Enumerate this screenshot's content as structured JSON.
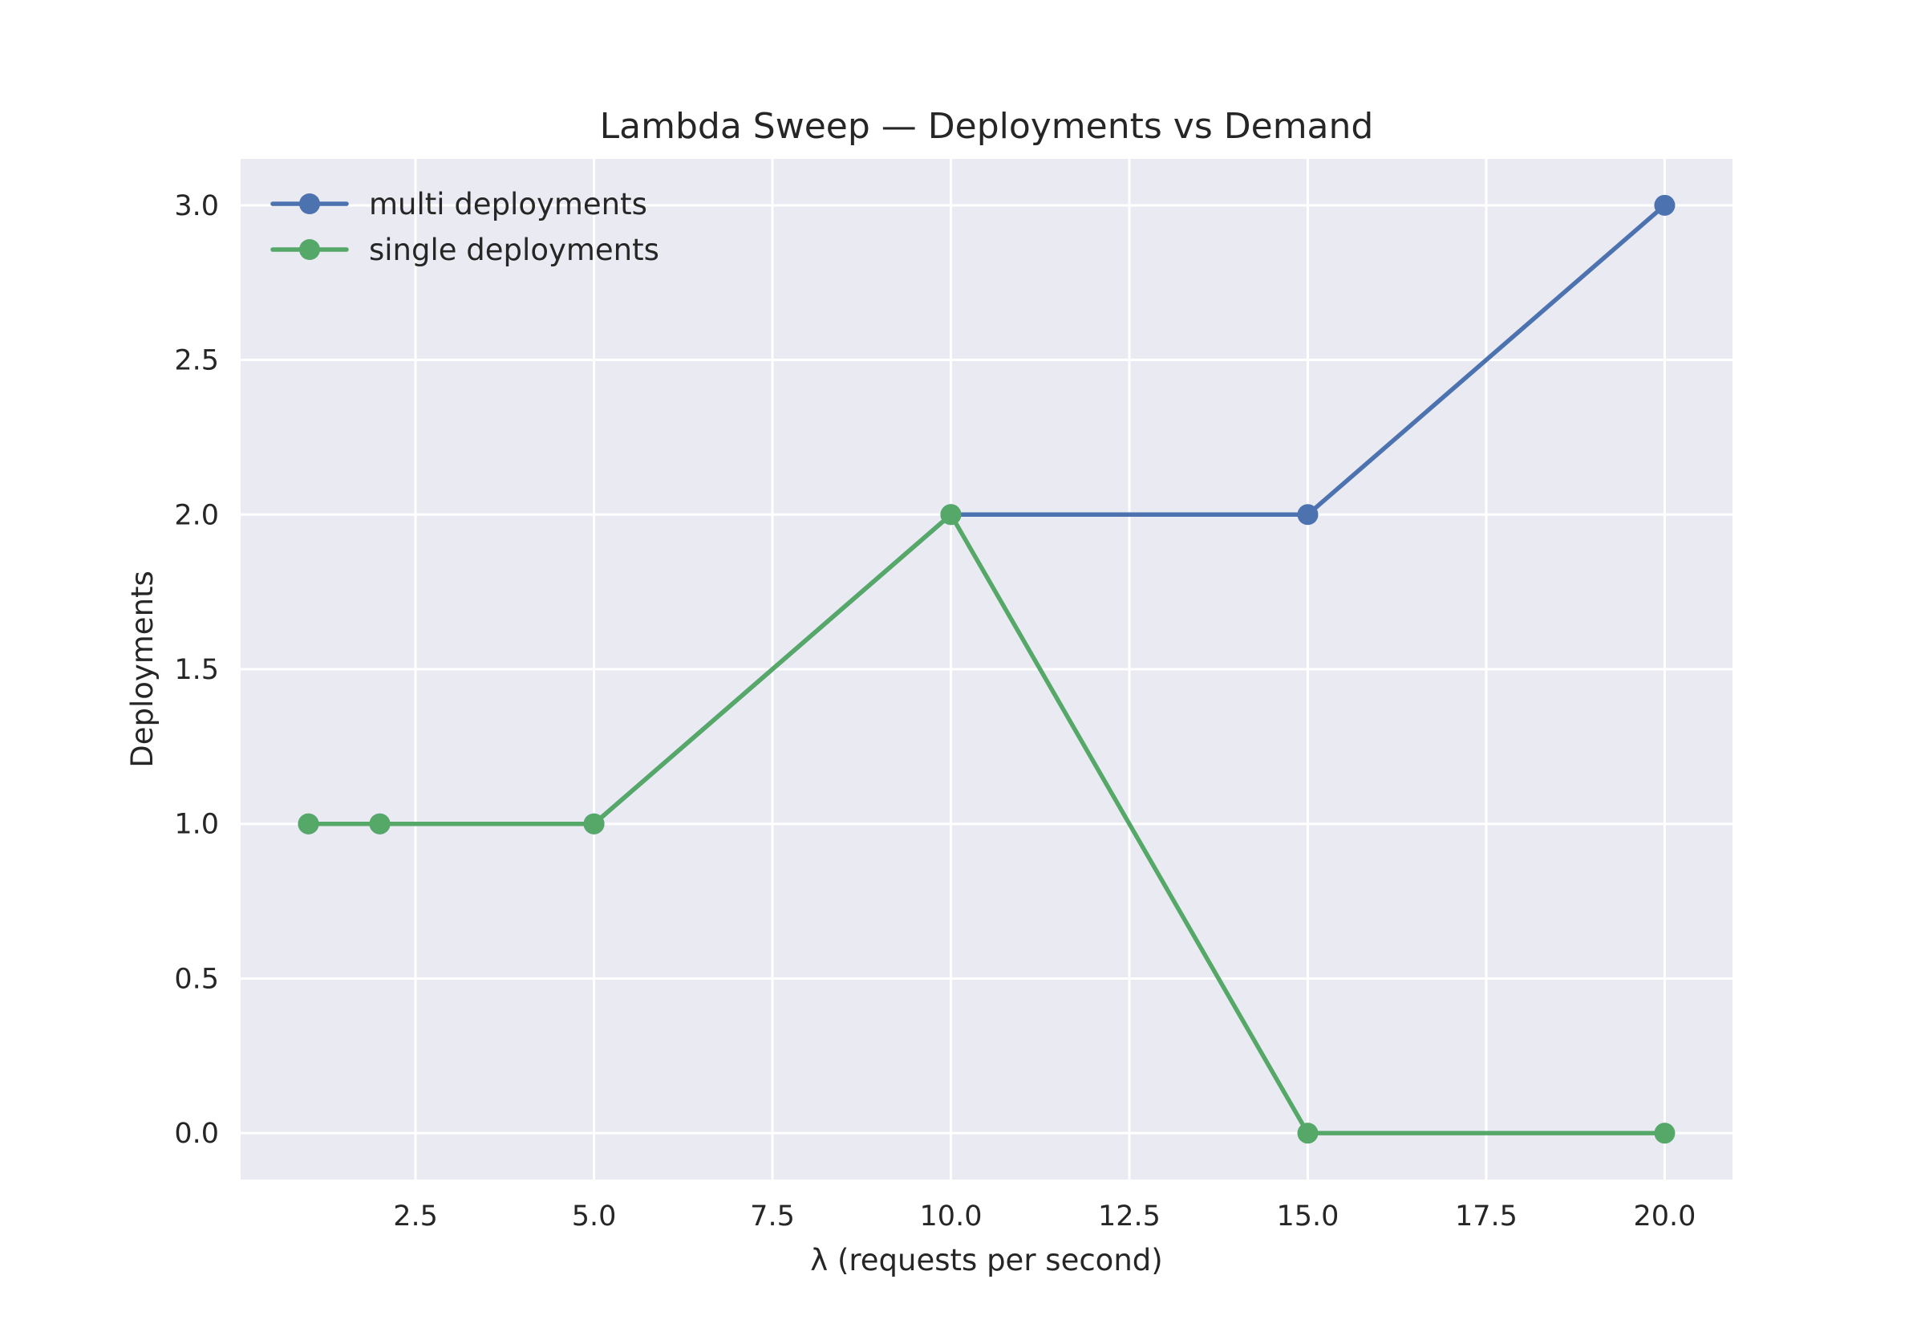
{
  "chart_data": {
    "type": "line",
    "title": "Lambda Sweep — Deployments vs Demand",
    "xlabel": "λ (requests per second)",
    "ylabel": "Deployments",
    "xlim": [
      0.05,
      20.95
    ],
    "ylim": [
      -0.15,
      3.15
    ],
    "xticks": [
      2.5,
      5.0,
      7.5,
      10.0,
      12.5,
      15.0,
      17.5,
      20.0
    ],
    "xtick_labels": [
      "2.5",
      "5.0",
      "7.5",
      "10.0",
      "12.5",
      "15.0",
      "17.5",
      "20.0"
    ],
    "yticks": [
      0.0,
      0.5,
      1.0,
      1.5,
      2.0,
      2.5,
      3.0
    ],
    "ytick_labels": [
      "0.0",
      "0.5",
      "1.0",
      "1.5",
      "2.0",
      "2.5",
      "3.0"
    ],
    "grid": true,
    "legend_position": "top-left",
    "background": "#EAEAF2",
    "series": [
      {
        "name": "multi deployments",
        "color": "#4C72B0",
        "x": [
          1,
          2,
          5,
          10,
          15,
          20
        ],
        "y": [
          1,
          1,
          1,
          2,
          2,
          3
        ]
      },
      {
        "name": "single deployments",
        "color": "#55A868",
        "x": [
          1,
          2,
          5,
          10,
          15,
          20
        ],
        "y": [
          1,
          1,
          1,
          2,
          0,
          0
        ]
      }
    ]
  }
}
